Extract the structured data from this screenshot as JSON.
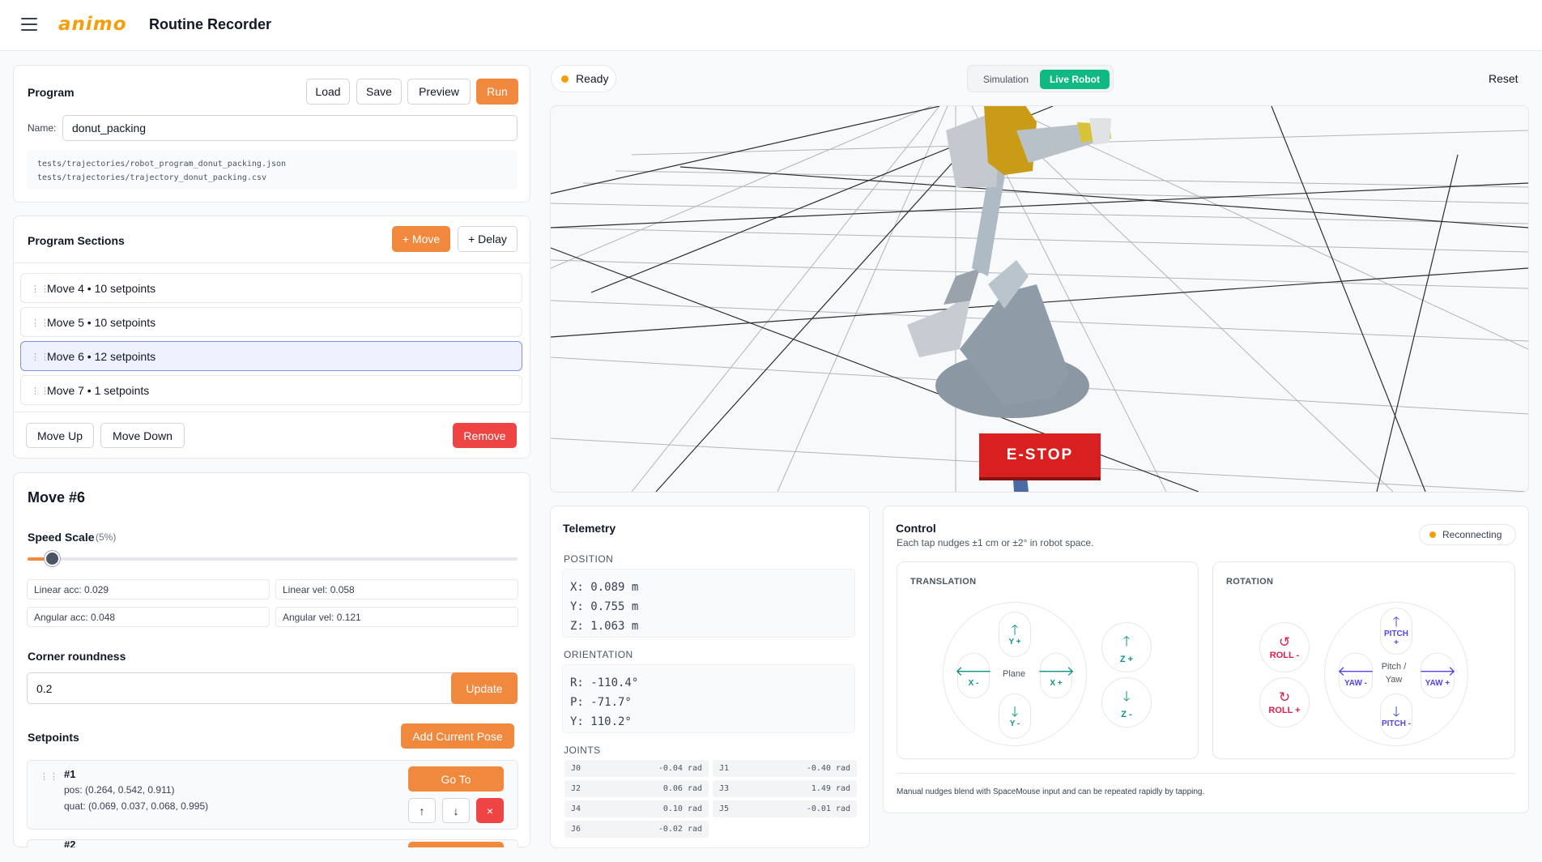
{
  "header": {
    "logo": "animo",
    "title": "Routine Recorder"
  },
  "program": {
    "title": "Program",
    "load": "Load",
    "save": "Save",
    "preview": "Preview",
    "run": "Run",
    "name_label": "Name:",
    "name_value": "donut_packing",
    "path1": "tests/trajectories/robot_program_donut_packing.json",
    "path2": "tests/trajectories/trajectory_donut_packing.csv"
  },
  "sections": {
    "title": "Program Sections",
    "add_move": "+ Move",
    "add_delay": "+ Delay",
    "items": [
      {
        "label": "Move 4 • 10 setpoints"
      },
      {
        "label": "Move 5 • 10 setpoints"
      },
      {
        "label": "Move 6 • 12 setpoints"
      },
      {
        "label": "Move 7 • 1 setpoints"
      }
    ],
    "move_up": "Move Up",
    "move_down": "Move Down",
    "remove": "Remove"
  },
  "move": {
    "title": "Move #6",
    "speed_label": "Speed Scale",
    "speed_value": "(5%)",
    "speed_fraction": 0.05,
    "linear_acc": "Linear acc: 0.029",
    "linear_vel": "Linear vel: 0.058",
    "angular_acc": "Angular acc: 0.048",
    "angular_vel": "Angular vel: 0.121",
    "corner_label": "Corner roundness",
    "corner_value": "0.2",
    "update": "Update",
    "setpoints_label": "Setpoints",
    "add_pose": "Add Current Pose",
    "sp1": {
      "index": "#1",
      "pos": "pos: (0.264, 0.542, 0.911)",
      "quat": "quat: (0.069, 0.037, 0.068, 0.995)",
      "goto": "Go To",
      "up": "↑",
      "down": "↓",
      "del": "×"
    },
    "sp2": {
      "index": "#2"
    }
  },
  "viewport": {
    "status": "Ready",
    "status_color": "#f59e0b",
    "mode_sim": "Simulation",
    "mode_live": "Live Robot",
    "reset": "Reset",
    "estop": "E-STOP"
  },
  "telemetry": {
    "title": "Telemetry",
    "position_label": "POSITION",
    "x": "X: 0.089 m",
    "y": "Y: 0.755 m",
    "z": "Z: 1.063 m",
    "orientation_label": "ORIENTATION",
    "r": "R: -110.4°",
    "p": "P: -71.7°",
    "yw": "Y: 110.2°",
    "joints_label": "JOINTS",
    "joints": [
      {
        "n": "J0",
        "v": "-0.04 rad"
      },
      {
        "n": "J1",
        "v": "-0.40 rad"
      },
      {
        "n": "J2",
        "v": "0.06 rad"
      },
      {
        "n": "J3",
        "v": "1.49 rad"
      },
      {
        "n": "J4",
        "v": "0.10 rad"
      },
      {
        "n": "J5",
        "v": "-0.01 rad"
      },
      {
        "n": "J6",
        "v": "-0.02 rad"
      }
    ]
  },
  "control": {
    "title": "Control",
    "subtitle": "Each tap nudges ±1 cm or ±2° in robot space.",
    "status": "Reconnecting",
    "translation": "TRANSLATION",
    "rotation": "ROTATION",
    "plane": "Plane",
    "yplus": "Y +",
    "yminus": "Y -",
    "xminus": "X -",
    "xplus": "X +",
    "zplus": "Z +",
    "zminus": "Z -",
    "rollminus": "ROLL -",
    "rollplus": "ROLL +",
    "pitchplus": "PITCH +",
    "pitchminus": "PITCH -",
    "yawminus": "YAW -",
    "yawplus": "YAW +",
    "pitchyaw": "Pitch / Yaw",
    "footer": "Manual nudges blend with SpaceMouse input and can be repeated rapidly by tapping."
  }
}
